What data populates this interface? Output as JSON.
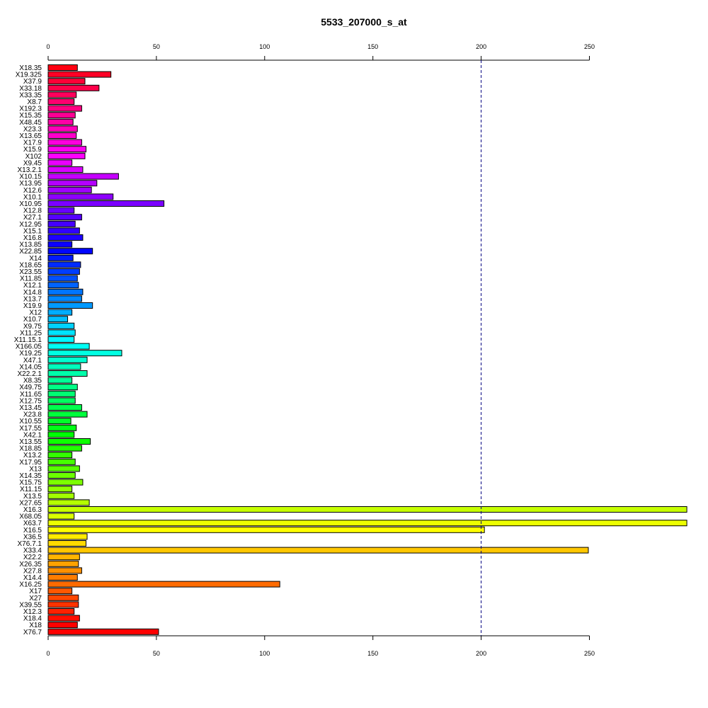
{
  "chart_data": {
    "type": "bar",
    "orientation": "horizontal",
    "title": "5533_207000_s_at",
    "xlabel": "",
    "ylabel": "",
    "xlim": [
      0,
      295
    ],
    "xticks": [
      0,
      50,
      100,
      150,
      200,
      250
    ],
    "reference_line": {
      "x": 200,
      "style": "dashed",
      "color": "#000080"
    },
    "grid": false,
    "legend": "none",
    "categories": [
      "X18.35",
      "X19.325",
      "X37.9",
      "X33.18",
      "X33.35",
      "X8.7",
      "X192.3",
      "X15.35",
      "X48.45",
      "X23.3",
      "X13.65",
      "X17.9",
      "X15.9",
      "X102",
      "X9.45",
      "X13.2.1",
      "X10.15",
      "X13.95",
      "X12.6",
      "X10.1",
      "X10.95",
      "X12.8",
      "X27.1",
      "X12.95",
      "X15.1",
      "X16.8",
      "X13.85",
      "X22.85",
      "X14",
      "X18.65",
      "X23.55",
      "X11.85",
      "X12.1",
      "X14.8",
      "X13.7",
      "X19.9",
      "X12",
      "X10.7",
      "X9.75",
      "X11.25",
      "X11.15.1",
      "X166.05",
      "X19.25",
      "X47.1",
      "X14.05",
      "X22.2.1",
      "X8.35",
      "X49.75",
      "X11.65",
      "X12.75",
      "X13.45",
      "X23.8",
      "X10.55",
      "X17.55",
      "X42.1",
      "X13.55",
      "X18.85",
      "X13.2",
      "X17.95",
      "X13",
      "X14.35",
      "X15.75",
      "X11.15",
      "X13.5",
      "X27.65",
      "X16.3",
      "X68.05",
      "X63.7",
      "X16.5",
      "X36.5",
      "X76.7.1",
      "X33.4",
      "X22.2",
      "X26.35",
      "X27.8",
      "X14.4",
      "X16.25",
      "X17",
      "X27",
      "X39.55",
      "X12.3",
      "X18.4",
      "X18",
      "X76.7"
    ],
    "values": [
      13.5,
      29,
      17,
      23.5,
      13,
      12,
      15.5,
      12.5,
      11.5,
      13.5,
      13,
      15.5,
      17.5,
      17,
      11,
      16,
      32.5,
      22.5,
      20,
      30,
      53.5,
      12,
      15.5,
      12.5,
      14.5,
      16,
      11,
      20.5,
      11.5,
      15,
      14.5,
      13.5,
      14,
      16,
      15.5,
      20.5,
      11,
      9,
      12,
      12.5,
      12,
      19,
      34,
      18,
      15,
      18,
      11,
      13.5,
      12.5,
      12.5,
      15.5,
      18,
      10.5,
      13,
      12,
      19.5,
      15.5,
      11,
      12.5,
      14.5,
      12.5,
      16,
      11,
      12,
      19,
      295,
      12,
      295,
      201.5,
      18,
      17.5,
      249.5,
      14.5,
      14,
      15.5,
      13.5,
      107,
      11,
      14,
      14,
      12,
      14.5,
      13.5,
      51
    ],
    "colors": [
      "#FF0012",
      "#FF0025",
      "#FF0037",
      "#FF004A",
      "#FF005C",
      "#FF006F",
      "#FF0081",
      "#FF0094",
      "#FF00A6",
      "#FF00B9",
      "#FF00CB",
      "#FF00DE",
      "#FF00F0",
      "#FD00FF",
      "#EA00FF",
      "#D800FF",
      "#C500FF",
      "#B300FF",
      "#A000FF",
      "#8E00FF",
      "#7B00FF",
      "#6900FF",
      "#5600FF",
      "#4400FF",
      "#3100FF",
      "#1F00FF",
      "#0C00FF",
      "#0006FF",
      "#0019FF",
      "#002BFF",
      "#003EFF",
      "#0050FF",
      "#0063FF",
      "#0075FF",
      "#0088FF",
      "#009AFF",
      "#00ADFF",
      "#00BFFF",
      "#00D2FF",
      "#00E4FF",
      "#00F7FF",
      "#00FFF5",
      "#00FFE2",
      "#00FFD0",
      "#00FFBD",
      "#00FFAB",
      "#00FF98",
      "#00FF86",
      "#00FF73",
      "#00FF61",
      "#00FF4E",
      "#00FF3C",
      "#00FF29",
      "#00FF17",
      "#00FF04",
      "#0EFF00",
      "#21FF00",
      "#33FF00",
      "#46FF00",
      "#58FF00",
      "#6BFF00",
      "#7DFF00",
      "#90FF00",
      "#A2FF00",
      "#B5FF00",
      "#C7FF00",
      "#DAFF00",
      "#ECFF00",
      "#FFFF00",
      "#FFEC00",
      "#FFDA00",
      "#FFC700",
      "#FFB500",
      "#FFA200",
      "#FF9000",
      "#FF7D00",
      "#FF6B00",
      "#FF5800",
      "#FF4600",
      "#FF3300",
      "#FF2100",
      "#FF0E00",
      "#FF0000",
      "#FF0000"
    ]
  }
}
